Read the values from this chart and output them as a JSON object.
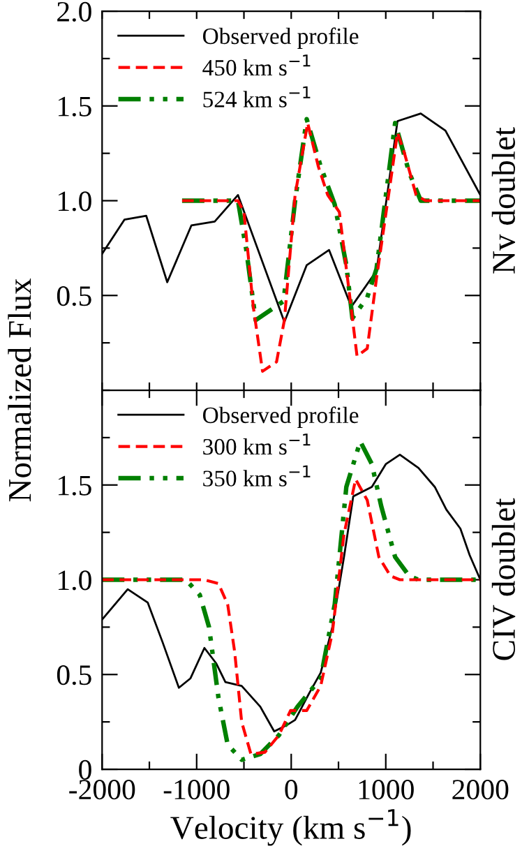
{
  "chart_data": [
    {
      "type": "line",
      "ylabel": "Normalized Flux",
      "annotations": [
        "Nv doublet"
      ],
      "legend": "top left",
      "tick_labels": "y",
      "grid": false,
      "xlim": [
        -2000,
        2000
      ],
      "xticks": [
        {
          "value": -2000,
          "label": null
        },
        {
          "value": -1500,
          "label": null
        },
        {
          "value": -1000,
          "label": null
        },
        {
          "value": -500,
          "label": null
        },
        {
          "value": 0,
          "label": null
        },
        {
          "value": 500,
          "label": null
        },
        {
          "value": 1000,
          "label": null
        },
        {
          "value": 1500,
          "label": null
        },
        {
          "value": 2000,
          "label": null
        }
      ],
      "ylim": [
        0,
        2
      ],
      "yticks": [
        {
          "value": 0,
          "label": null
        },
        {
          "value": 0.25,
          "label": null
        },
        {
          "value": 0.5,
          "label": "0.5"
        },
        {
          "value": 0.75,
          "label": null
        },
        {
          "value": 1,
          "label": "1.0"
        },
        {
          "value": 1.25,
          "label": null
        },
        {
          "value": 1.5,
          "label": "1.5"
        },
        {
          "value": 1.75,
          "label": null
        },
        {
          "value": 2,
          "label": "2.0"
        }
      ],
      "series": [
        {
          "name": "Observed profile",
          "color": "#000000",
          "line_style": "solid",
          "x": [
            -2000,
            -1764,
            -1533,
            -1311,
            -1055,
            -809,
            -563,
            -72,
            164,
            400,
            636,
            902,
            1124,
            1370,
            1631,
            2000
          ],
          "values": [
            0.72,
            0.9,
            0.92,
            0.57,
            0.87,
            0.89,
            1.03,
            0.36,
            0.66,
            0.74,
            0.44,
            0.63,
            1.42,
            1.46,
            1.37,
            1.03
          ]
        },
        {
          "name": "450 km s$^{−1}$",
          "color": "#ff0000",
          "line_style": "dashed",
          "x": [
            -1154,
            -563,
            -500,
            -401,
            -303,
            -155,
            -72,
            41,
            174,
            287,
            386,
            509,
            608,
            696,
            804,
            902,
            1050,
            1124,
            1198,
            1321,
            1420,
            2000
          ],
          "values": [
            1.0,
            1.0,
            0.94,
            0.44,
            0.1,
            0.15,
            0.37,
            1.03,
            1.41,
            1.18,
            1.03,
            0.94,
            0.54,
            0.18,
            0.22,
            0.59,
            1.1,
            1.36,
            1.25,
            1.03,
            1.0,
            1.0
          ]
        },
        {
          "name": "524 km s$^{−1}$",
          "color": "#008000",
          "line_style": "dashdotdot",
          "x": [
            -1154,
            -563,
            -475,
            -376,
            -81,
            41,
            164,
            312,
            460,
            583,
            647,
            804,
            902,
            1099,
            1247,
            1370,
            2000
          ],
          "values": [
            1.0,
            1.0,
            0.74,
            0.37,
            0.47,
            1.0,
            1.43,
            1.18,
            0.98,
            0.66,
            0.38,
            0.49,
            0.64,
            1.41,
            1.15,
            1.0,
            1.0
          ]
        }
      ]
    },
    {
      "type": "line",
      "xlabel": "Velocity (km s$^{−1}$)",
      "annotations": [
        "CIV doublet"
      ],
      "legend": "top left",
      "grid": false,
      "xlim": [
        -2000,
        2000
      ],
      "xticks": [
        -2000,
        {
          "value": -1500,
          "label": null
        },
        -1000,
        {
          "value": -500,
          "label": null
        },
        0,
        {
          "value": 500,
          "label": null
        },
        1000,
        {
          "value": 1500,
          "label": null
        },
        2000
      ],
      "ylim": [
        0,
        2
      ],
      "yticks": [
        0,
        {
          "value": 0.25,
          "label": null
        },
        {
          "value": 0.5,
          "label": "0.5"
        },
        {
          "value": 0.75,
          "label": null
        },
        {
          "value": 1,
          "label": "1.0"
        },
        {
          "value": 1.25,
          "label": null
        },
        {
          "value": 1.5,
          "label": "1.5"
        },
        {
          "value": 1.75,
          "label": null
        },
        {
          "value": 2,
          "label": null
        }
      ],
      "series": [
        {
          "name": "Observed profile",
          "color": "#000000",
          "line_style": "solid",
          "x": [
            -2000,
            -1729,
            -1518,
            -1360,
            -1188,
            -1065,
            -918,
            -795,
            -696,
            -524,
            -327,
            -180,
            -57,
            41,
            189,
            312,
            435,
            558,
            656,
            853,
            1000,
            1149,
            1346,
            1518,
            1641,
            1789,
            1887,
            2000
          ],
          "values": [
            0.79,
            0.95,
            0.88,
            0.67,
            0.43,
            0.48,
            0.64,
            0.56,
            0.46,
            0.44,
            0.33,
            0.2,
            0.23,
            0.26,
            0.4,
            0.51,
            0.75,
            1.12,
            1.44,
            1.49,
            1.61,
            1.66,
            1.59,
            1.49,
            1.37,
            1.27,
            1.13,
            1.0
          ]
        },
        {
          "name": "300 km s$^{−1}$",
          "color": "#ff0000",
          "line_style": "dashed",
          "x": [
            -2000,
            -918,
            -770,
            -672,
            -598,
            -524,
            -426,
            -278,
            -130,
            -7,
            164,
            312,
            435,
            558,
            681,
            804,
            927,
            1050,
            1149,
            2000
          ],
          "values": [
            1.0,
            1.0,
            0.98,
            0.87,
            0.62,
            0.25,
            0.08,
            0.09,
            0.18,
            0.31,
            0.31,
            0.44,
            0.72,
            1.24,
            1.53,
            1.42,
            1.12,
            1.02,
            1.0,
            1.0
          ]
        },
        {
          "name": "350 km s$^{−1}$",
          "color": "#008000",
          "line_style": "dashdotdot",
          "x": [
            -2000,
            -1114,
            -967,
            -869,
            -770,
            -672,
            -524,
            -327,
            -130,
            66,
            312,
            460,
            583,
            730,
            853,
            951,
            1099,
            1247,
            1346,
            2000
          ],
          "values": [
            1.0,
            1.0,
            0.92,
            0.75,
            0.38,
            0.13,
            0.05,
            0.08,
            0.18,
            0.33,
            0.48,
            0.87,
            1.49,
            1.73,
            1.61,
            1.39,
            1.12,
            1.02,
            1.0,
            1.0
          ]
        }
      ]
    }
  ]
}
